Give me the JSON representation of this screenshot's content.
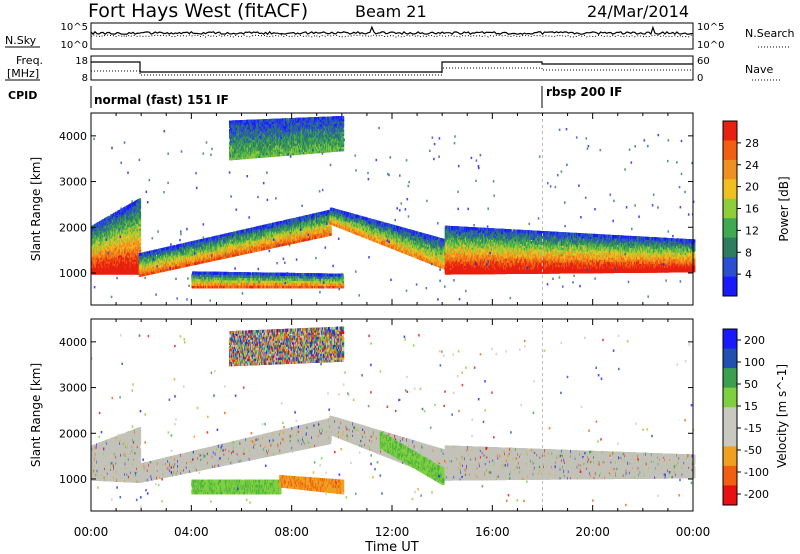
{
  "header": {
    "station": "Fort Hays West (fitACF)",
    "beam": "Beam 21",
    "date": "24/Mar/2014"
  },
  "left_labels": {
    "nsky": "N.Sky",
    "freq_line1": "Freq.",
    "freq_line2": "[MHz]",
    "cpid": "CPID"
  },
  "right_labels": {
    "nsearch": "N.Search",
    "nave": "Nave"
  },
  "noise_panel": {
    "left_ticks": [
      "10^5",
      "10^0"
    ],
    "right_ticks": [
      "10^5",
      "10^0"
    ]
  },
  "freq_panel": {
    "left_ticks": [
      "18",
      "8"
    ],
    "right_ticks": [
      "60",
      "0"
    ]
  },
  "cpid_panel": {
    "labels": [
      {
        "text": "normal (fast) 151 IF",
        "start_hour": 0
      },
      {
        "text": "rbsp 200 IF",
        "start_hour": 18
      }
    ]
  },
  "colors": {
    "power_scale": [
      "#1a1aff",
      "#2a4fd0",
      "#2e7d60",
      "#3faa50",
      "#8fce3a",
      "#f0c020",
      "#f09020",
      "#f06010",
      "#e82010"
    ],
    "velocity_scale": [
      "#e81010",
      "#f06010",
      "#f0a020",
      "#c9c9c0",
      "#c9c9c0",
      "#7fd040",
      "#3aa050",
      "#2050b0",
      "#1a1aff"
    ],
    "ground_scatter": "#c2c2b8"
  },
  "chart_data": [
    {
      "type": "heatmap",
      "name": "power",
      "xlabel": "",
      "ylabel": "Slant Range [km]",
      "xlim": [
        0,
        24
      ],
      "ylim": [
        300,
        4500
      ],
      "x_ticks": [
        "00:00",
        "04:00",
        "08:00",
        "12:00",
        "16:00",
        "20:00",
        "00:00"
      ],
      "x_tick_hours": [
        0,
        4,
        8,
        12,
        16,
        20,
        24
      ],
      "y_ticks": [
        1000,
        2000,
        3000,
        4000
      ],
      "colorbar": {
        "label": "Power [dB]",
        "range": [
          0,
          32
        ],
        "ticks": [
          4,
          8,
          12,
          16,
          20,
          24,
          28
        ]
      },
      "regions": [
        {
          "t0": 0.0,
          "t1": 1.9,
          "r_top0": 2000,
          "r_top1": 2600,
          "r_bot0": 1000,
          "r_bot1": 1000,
          "level": 0.6
        },
        {
          "t0": 1.9,
          "t1": 9.5,
          "r_top0": 1400,
          "r_top1": 2350,
          "r_bot0": 950,
          "r_bot1": 1850,
          "level": 0.45
        },
        {
          "t0": 9.5,
          "t1": 14.1,
          "r_top0": 2400,
          "r_top1": 1700,
          "r_bot0": 2100,
          "r_bot1": 1100,
          "level": 0.4
        },
        {
          "t0": 4.0,
          "t1": 10.0,
          "r_top0": 1000,
          "r_top1": 950,
          "r_bot0": 700,
          "r_bot1": 700,
          "level": 0.45
        },
        {
          "t0": 14.1,
          "t1": 24.0,
          "r_top0": 2000,
          "r_top1": 1700,
          "r_bot0": 1000,
          "r_bot1": 1050,
          "level": 0.6
        },
        {
          "t0": 5.5,
          "t1": 10.0,
          "r_top0": 4300,
          "r_top1": 4400,
          "r_bot0": 3500,
          "r_bot1": 3700,
          "level": 0.2
        }
      ]
    },
    {
      "type": "heatmap",
      "name": "velocity",
      "xlabel": "Time UT",
      "ylabel": "Slant Range [km]",
      "xlim": [
        0,
        24
      ],
      "ylim": [
        300,
        4500
      ],
      "x_ticks": [
        "00:00",
        "04:00",
        "08:00",
        "12:00",
        "16:00",
        "20:00",
        "00:00"
      ],
      "x_tick_hours": [
        0,
        4,
        8,
        12,
        16,
        20,
        24
      ],
      "y_ticks": [
        1000,
        2000,
        3000,
        4000
      ],
      "colorbar": {
        "label": "Velocity [m s^-1]",
        "range": [
          -250,
          250
        ],
        "ticks": [
          200,
          100,
          50,
          15,
          -15,
          -50,
          -100,
          -200
        ]
      },
      "regions": [
        {
          "t0": 0.0,
          "t1": 1.9,
          "r_top0": 1700,
          "r_top1": 2100,
          "r_bot0": 1000,
          "r_bot1": 950,
          "color": "gs"
        },
        {
          "t0": 1.9,
          "t1": 9.5,
          "r_top0": 1300,
          "r_top1": 2300,
          "r_bot0": 950,
          "r_bot1": 1800,
          "color": "gs"
        },
        {
          "t0": 9.5,
          "t1": 14.1,
          "r_top0": 2350,
          "r_top1": 1600,
          "r_bot0": 2000,
          "r_bot1": 1000,
          "color": "gs"
        },
        {
          "t0": 11.5,
          "t1": 14.0,
          "r_top0": 2000,
          "r_top1": 1200,
          "r_bot0": 1700,
          "r_bot1": 900,
          "color": "green"
        },
        {
          "t0": 4.0,
          "t1": 7.5,
          "r_top0": 950,
          "r_top1": 950,
          "r_bot0": 700,
          "r_bot1": 700,
          "color": "green"
        },
        {
          "t0": 7.5,
          "t1": 10.0,
          "r_top0": 1050,
          "r_top1": 950,
          "r_bot0": 850,
          "r_bot1": 700,
          "color": "orange"
        },
        {
          "t0": 14.1,
          "t1": 24.0,
          "r_top0": 1700,
          "r_top1": 1500,
          "r_bot0": 1000,
          "r_bot1": 1050,
          "color": "gs"
        },
        {
          "t0": 5.5,
          "t1": 10.0,
          "r_top0": 4200,
          "r_top1": 4300,
          "r_bot0": 3500,
          "r_bot1": 3600,
          "color": "mixed"
        }
      ]
    }
  ]
}
